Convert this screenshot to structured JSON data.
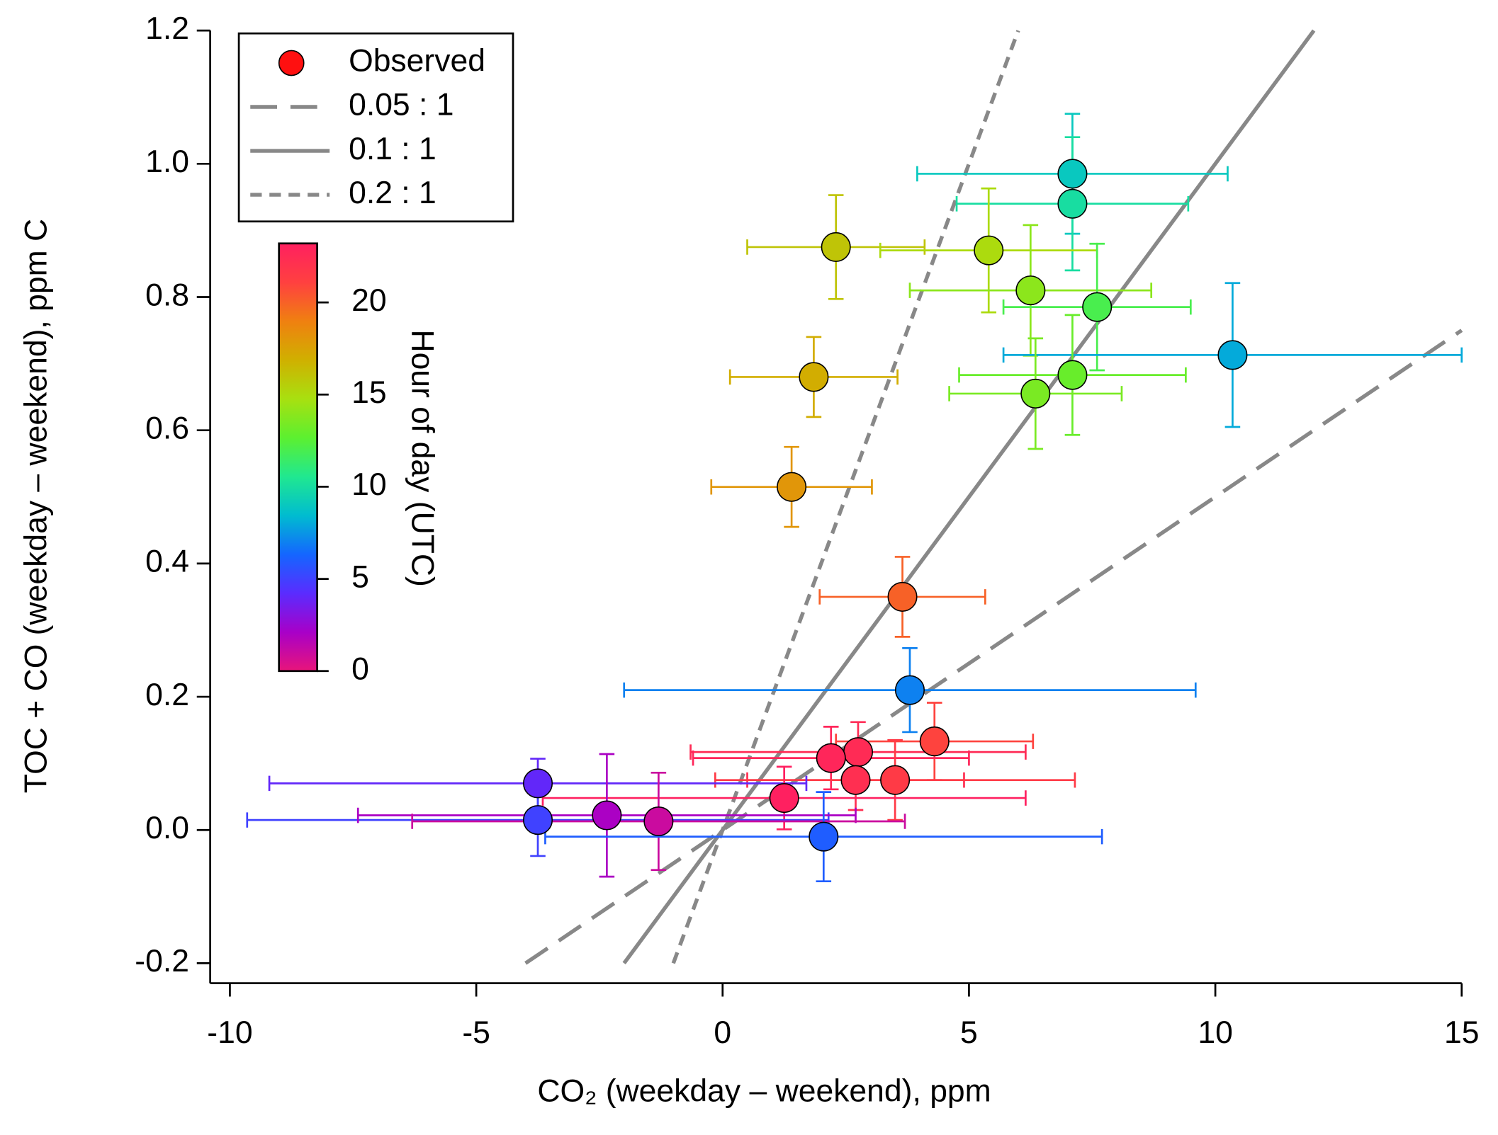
{
  "chart_data": {
    "type": "scatter",
    "xlabel": "CO₂ (weekday – weekend), ppm",
    "ylabel": "TOC + CO (weekday – weekend), ppm C",
    "xlim": [
      -10.4,
      15
    ],
    "ylim": [
      -0.23,
      1.2
    ],
    "xticks": [
      -10,
      -5,
      0,
      5,
      10,
      15
    ],
    "yticks": [
      {
        "value": -0.2,
        "label": "-0.2"
      },
      {
        "value": 0,
        "label": "0.0"
      },
      {
        "value": 0.2,
        "label": "0.2"
      },
      {
        "value": 0.4,
        "label": "0.4"
      },
      {
        "value": 0.6,
        "label": "0.6"
      },
      {
        "value": 0.8,
        "label": "0.8"
      },
      {
        "value": 1,
        "label": "1.0"
      },
      {
        "value": 1.2,
        "label": "1.2"
      }
    ],
    "series": [
      {
        "name": "Observed",
        "color": "#ff1010",
        "x": [
          7.1,
          7.1,
          2.3,
          5.4,
          6.25,
          7.6,
          10.35,
          1.85,
          7.1,
          6.35,
          1.4,
          3.65,
          3.8,
          4.3,
          2.75,
          2.2,
          2.7,
          3.5,
          -3.75,
          1.25,
          -3.75,
          -2.35,
          -1.3,
          2.05
        ],
        "values": [
          0.985,
          0.94,
          0.875,
          0.87,
          0.81,
          0.785,
          0.713,
          0.68,
          0.683,
          0.655,
          0.515,
          0.35,
          0.21,
          0.133,
          0.117,
          0.108,
          0.075,
          0.075,
          0.07,
          0.048,
          0.015,
          0.022,
          0.013,
          -0.01
        ],
        "xerr": [
          3.15,
          2.35,
          1.8,
          2.2,
          2.45,
          1.9,
          4.65,
          1.7,
          2.3,
          1.75,
          1.63,
          1.68,
          5.8,
          2.0,
          3.4,
          2.8,
          2.2,
          3.65,
          5.45,
          4.9,
          5.9,
          5.05,
          5.0,
          5.65
        ],
        "yerr": [
          0.09,
          0.1,
          0.078,
          0.093,
          0.098,
          0.095,
          0.108,
          0.06,
          0.09,
          0.083,
          0.06,
          0.06,
          0.063,
          0.058,
          0.045,
          0.047,
          0.045,
          0.06,
          0.037,
          0.047,
          0.054,
          0.092,
          0.073,
          0.067
        ],
        "hour": [
          9,
          10,
          16,
          15,
          14,
          12,
          8,
          17,
          13,
          13.5,
          18,
          20,
          7,
          21,
          22.5,
          22.8,
          22.2,
          21.5,
          4,
          23.5,
          5,
          2,
          1,
          6
        ]
      },
      {
        "name": "0.05 : 1",
        "color": "#888888",
        "dash": "long",
        "x": [
          -4,
          15
        ],
        "values": [
          -0.2,
          0.75
        ]
      },
      {
        "name": "0.1 : 1",
        "color": "#888888",
        "dash": "solid",
        "x": [
          -2,
          12
        ],
        "values": [
          -0.2,
          1.2
        ]
      },
      {
        "name": "0.2 : 1",
        "color": "#888888",
        "dash": "short",
        "x": [
          -1,
          6
        ],
        "values": [
          -0.2,
          1.2
        ]
      }
    ],
    "colorbar": {
      "label": "Hour of day (UTC)",
      "clim": [
        0,
        23.2
      ],
      "ticks": [
        0,
        5,
        10,
        15,
        20
      ],
      "colorscale": [
        "#e8157a",
        "#a800c8",
        "#5a2cff",
        "#1466ff",
        "#00bcd0",
        "#20e890",
        "#5cf030",
        "#a8e010",
        "#d0b000",
        "#f08010",
        "#ff4040",
        "#ff2060"
      ]
    }
  }
}
